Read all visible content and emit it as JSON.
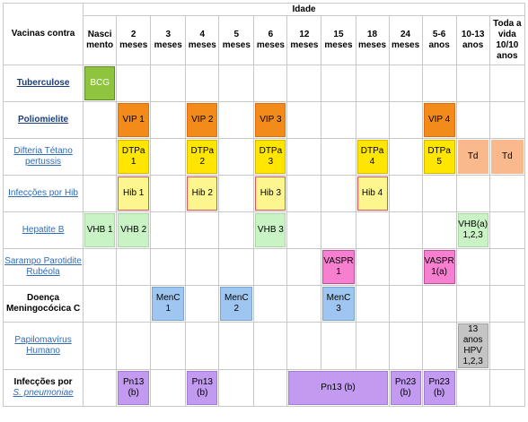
{
  "header": {
    "vaccines_title": "Vacinas contra",
    "age_title": "Idade",
    "ages": [
      "Nasci mento",
      "2 meses",
      "3 meses",
      "4 meses",
      "5 meses",
      "6 meses",
      "12 meses",
      "15 meses",
      "18 meses",
      "24 meses",
      "5-6 anos",
      "10-13 anos",
      "Toda a vida 10/10 anos"
    ]
  },
  "rows": {
    "tuberculose": {
      "label": "Tuberculose",
      "bcg": "BCG"
    },
    "poliomielite": {
      "label": "Poliomielite",
      "vip1": "VIP 1",
      "vip2": "VIP 2",
      "vip3": "VIP 3",
      "vip4": "VIP 4"
    },
    "difteria": {
      "label": "Difteria Tétano pertussis",
      "d1": "DTPa 1",
      "d2": "DTPa 2",
      "d3": "DTPa 3",
      "d4": "DTPa 4",
      "d5": "DTPa 5",
      "td1": "Td",
      "td2": "Td"
    },
    "hib": {
      "label": "Infecções por Hib",
      "h1": "Hib 1",
      "h2": "Hib 2",
      "h3": "Hib 3",
      "h4": "Hib 4"
    },
    "hepatite": {
      "label": "Hepatite B",
      "v1": "VHB 1",
      "v2": "VHB 2",
      "v3": "VHB 3",
      "va": "VHB(a) 1,2,3"
    },
    "sarampo": {
      "label": "Sarampo Parotidite Rubéola",
      "s1": "VASPR 1",
      "s2": "VASPR 1(a)"
    },
    "doenca": {
      "label": "Doença Meningocócica C",
      "m1": "MenC 1",
      "m2": "MenC 2",
      "m3": "MenC 3"
    },
    "papiloma": {
      "label": "Papilomavírus Humano",
      "hpv": "13 anos HPV 1,2,3"
    },
    "pneumo": {
      "label_a": "Infecções por",
      "label_b": "S. pneumoniae",
      "p1a": "Pn13",
      "p1b": "(b)",
      "p2a": "Pn13",
      "p2b": "(b)",
      "p3": "Pn13 (b)",
      "p4a": "Pn23",
      "p4b": "(b)",
      "p5a": "Pn23",
      "p5b": "(b)"
    }
  }
}
